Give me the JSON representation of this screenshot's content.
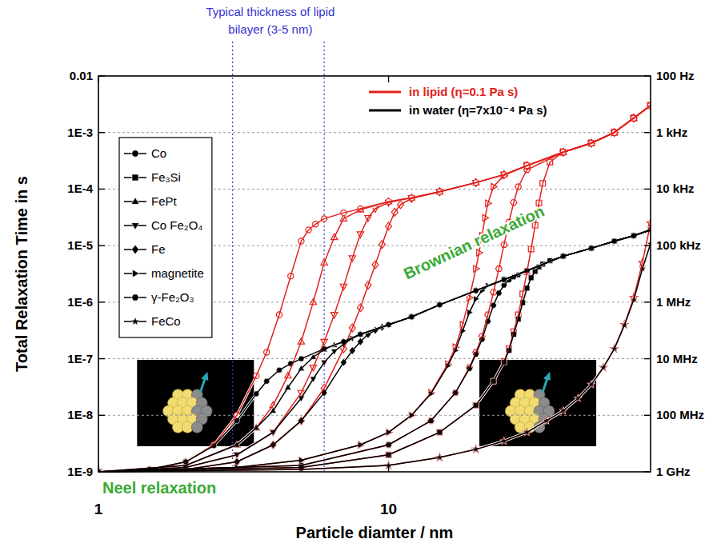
{
  "chart_data": {
    "type": "line",
    "x_label": "Particle diamter / nm",
    "y_label": "Total Relaxation Time in s",
    "log": true,
    "grid": true,
    "legend": "left",
    "xlim": [
      1,
      80
    ],
    "xticks": [
      1,
      10
    ],
    "ylim": [
      1e-09,
      0.01
    ],
    "yticks": [
      0.01,
      {
        "value": 0.001,
        "label": "1E-3"
      },
      {
        "value": 0.0001,
        "label": "1E-4"
      },
      {
        "value": 1e-05,
        "label": "1E-5"
      },
      {
        "value": 1e-06,
        "label": "1E-6"
      },
      {
        "value": 1e-07,
        "label": "1E-7"
      },
      {
        "value": 1e-08,
        "label": "1E-8"
      },
      {
        "value": 1e-09,
        "label": "1E-9"
      }
    ],
    "y2lim": [
      1000000000,
      100
    ],
    "y2ticks": [
      {
        "value": 100,
        "label": "100 Hz"
      },
      {
        "value": 1000,
        "label": "1 kHz"
      },
      {
        "value": 10000,
        "label": "10 kHz"
      },
      {
        "value": 100000,
        "label": "100 kHz"
      },
      {
        "value": 1000000,
        "label": "1 MHz"
      },
      {
        "value": 10000000,
        "label": "10 MHz"
      },
      {
        "value": 100000000,
        "label": "100 MHz"
      },
      {
        "value": 1000000000,
        "label": "1 GHz"
      }
    ],
    "media": [
      {
        "label": "in lipid (η=0.1 Pa s)",
        "color": "#e3211c"
      },
      {
        "label": "in water (η=7x10⁻⁴ Pa s)",
        "color": "#000000"
      }
    ],
    "reference_lines": {
      "x": [
        2.9,
        6
      ],
      "color": "#3333cc",
      "line_style": "dotted"
    },
    "annotations": [
      {
        "text": "Typical thickness of lipid bilayer (3-5 nm)",
        "color": "#3333cc"
      },
      {
        "text": "Brownian relaxation",
        "color": "#3aaa35"
      },
      {
        "text": "Neel relaxation",
        "color": "#3aaa35"
      }
    ],
    "series": [
      {
        "name": "Co",
        "color": "#000000",
        "marker": "circle",
        "line_style": "solid",
        "x": [
          1,
          1.5,
          2,
          2.5,
          3,
          3.5,
          3.8,
          4.2,
          4.6,
          5,
          6,
          7,
          8,
          10,
          12,
          15,
          20,
          25,
          30,
          40,
          50,
          60,
          70,
          80
        ],
        "values": [
          1e-09,
          1.1e-09,
          1.5e-09,
          2.9e-09,
          8e-09,
          2.4e-08,
          4e-08,
          6.3e-08,
          8.2e-08,
          1e-07,
          1.5e-07,
          2e-07,
          2.7e-07,
          4e-07,
          5.5e-07,
          9e-07,
          1.6e-06,
          2.5e-06,
          3.6e-06,
          6.5e-06,
          9e-06,
          1.2e-05,
          1.5e-05,
          1.9e-05
        ]
      },
      {
        "name": "Fe₃Si",
        "color": "#000000",
        "marker": "square",
        "line_style": "solid",
        "x": [
          1,
          5,
          10,
          15,
          20,
          23,
          25,
          26,
          27,
          28,
          29,
          30,
          31,
          32,
          33,
          34,
          36,
          40,
          50,
          60,
          70,
          80
        ],
        "values": [
          1e-09,
          1.2e-09,
          2e-09,
          5e-09,
          1.5e-08,
          4e-08,
          8.7e-08,
          1.4e-07,
          2.7e-07,
          5e-07,
          9.8e-07,
          1.77e-06,
          2.7e-06,
          3.5e-06,
          4.2e-06,
          4.7e-06,
          5.4e-06,
          6.5e-06,
          9e-06,
          1.2e-05,
          1.5e-05,
          1.9e-05
        ]
      },
      {
        "name": "FePt",
        "color": "#000000",
        "marker": "triangle-up",
        "line_style": "solid",
        "x": [
          1,
          2,
          3,
          3.5,
          4,
          4.5,
          5,
          5.5,
          6,
          6.5,
          7,
          8,
          10,
          12,
          15,
          20,
          25,
          30,
          40,
          50,
          60,
          70,
          80
        ],
        "values": [
          1e-09,
          1.3e-09,
          3e-09,
          6e-09,
          1.2e-08,
          3.1e-08,
          6.7e-08,
          1.07e-07,
          1.45e-07,
          1.75e-07,
          2e-07,
          2.7e-07,
          4e-07,
          5.5e-07,
          9e-07,
          1.6e-06,
          2.5e-06,
          3.6e-06,
          6.5e-06,
          9e-06,
          1.2e-05,
          1.5e-05,
          1.9e-05
        ]
      },
      {
        "name": "Co Fe₂O₄",
        "color": "#000000",
        "marker": "triangle-down",
        "line_style": "solid",
        "x": [
          1,
          2,
          3,
          4,
          5,
          5.5,
          6,
          6.5,
          7,
          7.5,
          8,
          10,
          12,
          15,
          20,
          25,
          30,
          40,
          50,
          60,
          70,
          80
        ],
        "values": [
          1e-09,
          1.2e-09,
          2e-09,
          5e-09,
          2e-08,
          4.4e-08,
          8.6e-08,
          1.35e-07,
          1.8e-07,
          2.3e-07,
          2.7e-07,
          4e-07,
          5.5e-07,
          9e-07,
          1.6e-06,
          2.5e-06,
          3.6e-06,
          6.5e-06,
          9e-06,
          1.2e-05,
          1.5e-05,
          1.9e-05
        ]
      },
      {
        "name": "Fe",
        "color": "#000000",
        "marker": "diamond",
        "line_style": "solid",
        "x": [
          1,
          2,
          3,
          4,
          5,
          6,
          7,
          7.5,
          8,
          8.5,
          9,
          9.5,
          10,
          12,
          15,
          20,
          25,
          30,
          40,
          50,
          60,
          70,
          80
        ],
        "values": [
          1e-09,
          1.1e-09,
          1.5e-09,
          3e-09,
          8e-09,
          2.5e-08,
          8.6e-08,
          1.39e-07,
          2e-07,
          2.7e-07,
          3.2e-07,
          3.6e-07,
          4e-07,
          5.5e-07,
          9e-07,
          1.6e-06,
          2.5e-06,
          3.6e-06,
          6.5e-06,
          9e-06,
          1.2e-05,
          1.5e-05,
          1.9e-05
        ]
      },
      {
        "name": "magnetite",
        "color": "#000000",
        "marker": "triangle-right",
        "line_style": "solid",
        "x": [
          1,
          3,
          5,
          8,
          10,
          12,
          14,
          16,
          17,
          18,
          19,
          20,
          21,
          22,
          25,
          30,
          40,
          50,
          60,
          70,
          80
        ],
        "values": [
          1e-09,
          1.2e-09,
          1.6e-09,
          3e-09,
          5e-09,
          1e-08,
          2.4e-08,
          7.5e-08,
          1.4e-07,
          3.1e-07,
          6.6e-07,
          1.14e-06,
          1.6e-06,
          1.96e-06,
          2.5e-06,
          3.6e-06,
          6.5e-06,
          9e-06,
          1.2e-05,
          1.5e-05,
          1.9e-05
        ]
      },
      {
        "name": "γ-Fe₂O₃",
        "color": "#000000",
        "marker": "hexagon",
        "line_style": "solid",
        "x": [
          1,
          5,
          10,
          14,
          17,
          19,
          20,
          21,
          22,
          23,
          24,
          25,
          26,
          27,
          28,
          30,
          40,
          50,
          60,
          70,
          80
        ],
        "values": [
          1e-09,
          1.3e-09,
          3e-09,
          8e-09,
          2.5e-08,
          6.7e-08,
          1.2e-07,
          2.2e-07,
          4.6e-07,
          8.8e-07,
          1.45e-06,
          2e-06,
          2.47e-06,
          2.8e-06,
          3.05e-06,
          3.6e-06,
          6.5e-06,
          9e-06,
          1.2e-05,
          1.5e-05,
          1.9e-05
        ]
      },
      {
        "name": "FeCo",
        "color": "#000000",
        "marker": "star",
        "line_style": "solid",
        "x": [
          1,
          5,
          10,
          15,
          20,
          25,
          30,
          35,
          40,
          45,
          50,
          55,
          60,
          65,
          70,
          75,
          80
        ],
        "values": [
          1e-09,
          1.1e-09,
          1.3e-09,
          1.8e-09,
          2.5e-09,
          3.5e-09,
          5e-09,
          8e-09,
          1.2e-08,
          2e-08,
          3.5e-08,
          7e-08,
          1.5e-07,
          3.9e-07,
          1.1e-06,
          3.9e-06,
          1.08e-05
        ]
      },
      {
        "name": "Co",
        "color": "#e3211c",
        "marker": "open-circle",
        "line_style": "solid",
        "x": [
          1,
          1.5,
          2,
          2.5,
          3,
          3.5,
          3.8,
          4.2,
          4.6,
          5,
          5.3,
          5.6,
          6,
          7,
          8,
          10,
          12,
          15,
          20,
          25,
          30,
          40,
          50,
          60,
          70,
          80
        ],
        "values": [
          1e-09,
          1.1e-09,
          1.5e-09,
          3e-09,
          1e-08,
          5e-08,
          1.3e-07,
          6e-07,
          2.9e-06,
          1.2e-05,
          1.9e-05,
          2.4e-05,
          3e-05,
          3.8e-05,
          4.5e-05,
          6e-05,
          7e-05,
          9e-05,
          0.00013,
          0.00018,
          0.00026,
          0.00045,
          0.00065,
          0.001,
          0.0018,
          0.003
        ]
      },
      {
        "name": "Fe₃Si",
        "color": "#e3211c",
        "marker": "open-square",
        "line_style": "solid",
        "x": [
          1,
          5,
          10,
          15,
          20,
          23,
          25,
          26,
          27,
          28,
          29,
          30,
          31,
          32,
          33,
          34,
          36,
          40,
          50,
          60,
          70,
          80
        ],
        "values": [
          1e-09,
          1.2e-09,
          2e-09,
          5e-09,
          1.5e-08,
          4e-08,
          9e-08,
          1.5e-07,
          3e-07,
          6e-07,
          1.4e-06,
          3.45e-06,
          8.7e-06,
          2.3e-05,
          5.7e-05,
          0.000126,
          0.0003,
          0.00045,
          0.00065,
          0.001,
          0.0018,
          0.003
        ]
      },
      {
        "name": "FePt",
        "color": "#e3211c",
        "marker": "open-triangle-up",
        "line_style": "solid",
        "x": [
          1,
          2,
          3,
          3.5,
          4,
          4.5,
          5,
          5.5,
          6,
          6.5,
          7,
          8,
          10,
          12,
          15,
          20,
          25,
          30,
          40,
          50,
          60,
          70,
          80
        ],
        "values": [
          1e-09,
          1.3e-09,
          3e-09,
          6e-09,
          1.5e-08,
          5e-08,
          2e-07,
          1e-06,
          5e-06,
          1.4e-05,
          3e-05,
          4.3e-05,
          6e-05,
          7e-05,
          9e-05,
          0.00013,
          0.00018,
          0.00026,
          0.00045,
          0.00065,
          0.001,
          0.0018,
          0.003
        ]
      },
      {
        "name": "Co Fe₂O₄",
        "color": "#e3211c",
        "marker": "open-triangle-down",
        "line_style": "solid",
        "x": [
          1,
          2,
          3,
          4,
          5,
          5.5,
          6,
          6.5,
          7,
          7.5,
          8,
          8.5,
          9,
          10,
          12,
          15,
          20,
          25,
          30,
          40,
          50,
          60,
          70,
          80
        ],
        "values": [
          1e-09,
          1.2e-09,
          2e-09,
          5e-09,
          2.5e-08,
          7e-08,
          2e-07,
          6e-07,
          1.9e-06,
          6e-06,
          1.6e-05,
          3.1e-05,
          4.5e-05,
          5.8e-05,
          7e-05,
          9e-05,
          0.00013,
          0.00018,
          0.00026,
          0.00045,
          0.00065,
          0.001,
          0.0018,
          0.003
        ]
      },
      {
        "name": "Fe",
        "color": "#e3211c",
        "marker": "open-diamond",
        "line_style": "solid",
        "x": [
          1,
          2,
          3,
          4,
          5,
          6,
          7,
          7.5,
          8,
          8.5,
          9,
          9.5,
          10,
          10.5,
          11,
          12,
          15,
          20,
          25,
          30,
          40,
          50,
          60,
          70,
          80
        ],
        "values": [
          1e-09,
          1.1e-09,
          1.5e-09,
          3e-09,
          8e-09,
          3e-08,
          1.5e-07,
          3.5e-07,
          8e-07,
          2e-06,
          4.6e-06,
          1.05e-05,
          2.2e-05,
          3.9e-05,
          5.3e-05,
          6.8e-05,
          9e-05,
          0.00013,
          0.00018,
          0.00026,
          0.00045,
          0.00065,
          0.001,
          0.0018,
          0.003
        ]
      },
      {
        "name": "magnetite",
        "color": "#e3211c",
        "marker": "open-triangle-right",
        "line_style": "solid",
        "x": [
          1,
          3,
          5,
          8,
          10,
          12,
          14,
          16,
          17,
          18,
          19,
          20,
          20.5,
          21,
          21.5,
          22,
          23,
          25,
          30,
          40,
          50,
          60,
          70,
          80
        ],
        "values": [
          1e-09,
          1.2e-09,
          1.6e-09,
          3e-09,
          5e-09,
          1e-08,
          2.5e-08,
          8e-08,
          1.6e-07,
          4e-07,
          1.2e-06,
          3.9e-06,
          7.5e-06,
          1.5e-05,
          3.1e-05,
          5.6e-05,
          0.00011,
          0.000175,
          0.00026,
          0.00045,
          0.00065,
          0.001,
          0.0018,
          0.003
        ]
      },
      {
        "name": "γ-Fe₂O₃",
        "color": "#e3211c",
        "marker": "open-hexagon",
        "line_style": "solid",
        "x": [
          1,
          5,
          10,
          14,
          17,
          19,
          20,
          21,
          22,
          23,
          24,
          25,
          26,
          27,
          28,
          30,
          40,
          50,
          60,
          70,
          80
        ],
        "values": [
          1e-09,
          1.3e-09,
          3e-09,
          8e-09,
          2.5e-08,
          7e-08,
          1.3e-07,
          2.5e-07,
          6e-07,
          1.5e-06,
          3.9e-06,
          1.04e-05,
          2.6e-05,
          5.8e-05,
          0.00011,
          0.00022,
          0.00045,
          0.00065,
          0.001,
          0.0018,
          0.003
        ]
      },
      {
        "name": "FeCo",
        "color": "#e3211c",
        "marker": "open-star",
        "line_style": "solid",
        "x": [
          1,
          5,
          10,
          15,
          20,
          25,
          30,
          35,
          40,
          45,
          50,
          55,
          60,
          65,
          70,
          75,
          80
        ],
        "values": [
          1e-09,
          1.1e-09,
          1.3e-09,
          1.8e-09,
          2.5e-09,
          3.5e-09,
          5e-09,
          8e-09,
          1.2e-08,
          2e-08,
          3.5e-08,
          7e-08,
          1.5e-07,
          4e-07,
          1.2e-06,
          5e-06,
          2.5e-05
        ]
      }
    ]
  }
}
